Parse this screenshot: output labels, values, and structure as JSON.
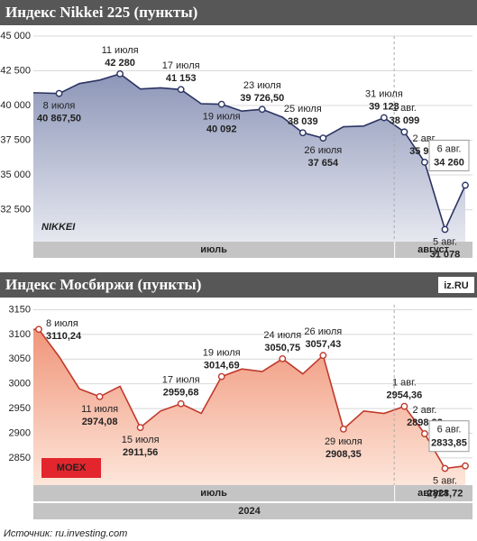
{
  "chart_data": [
    {
      "type": "area",
      "title": "Индекс Nikkei 225 (пункты)",
      "logo": "NIKKEI",
      "categories": [
        null,
        "8 июля",
        null,
        null,
        "11 июля",
        null,
        null,
        "17 июля",
        null,
        "19 июля",
        null,
        "23 июля",
        null,
        "25 июля",
        "26 июля",
        null,
        null,
        "31 июля",
        "1 авг.",
        "2 авг.",
        "5 авг.",
        "6 авг."
      ],
      "values": [
        40912,
        40867.5,
        41580,
        41831,
        42280,
        41190,
        41275,
        41153,
        40126,
        40092,
        39600,
        39726.5,
        39155,
        38039,
        37654,
        38470,
        38525,
        39123,
        38099,
        35917,
        31078,
        34260
      ],
      "value_labels": [
        null,
        "40 867,50",
        null,
        null,
        "42 280",
        null,
        null,
        "41 153",
        null,
        "40 092",
        null,
        "39 726,50",
        null,
        "38 039",
        "37 654",
        null,
        null,
        "39 123",
        "38 099",
        "35 917",
        "31 078",
        "34 260"
      ],
      "x_groups": [
        {
          "label": "июль",
          "count": 18
        },
        {
          "label": "август",
          "count": 4
        }
      ],
      "ylim": [
        30200,
        45000
      ],
      "yticks": [
        {
          "value": 32500,
          "label": "32 500"
        },
        {
          "value": 35000,
          "label": "35 000"
        },
        {
          "value": 37500,
          "label": "37 500"
        },
        {
          "value": 40000,
          "label": "40 000"
        },
        {
          "value": 42500,
          "label": "42 500"
        },
        {
          "value": 45000,
          "label": "45 000"
        }
      ],
      "grid": true,
      "color": "#2b3463",
      "fill": "#8d96b8"
    },
    {
      "type": "area",
      "title": "Индекс Мосбиржи (пункты)",
      "badge": "iz.RU",
      "logo": "MOEX",
      "categories": [
        "8 июля",
        null,
        null,
        "11 июля",
        null,
        "15 июля",
        null,
        "17 июля",
        null,
        "19 июля",
        null,
        null,
        "24 июля",
        null,
        "26 июля",
        "29 июля",
        null,
        null,
        "1 авг.",
        "2 авг.",
        "5 авг.",
        "6 авг."
      ],
      "values": [
        3110.24,
        3055,
        2990,
        2974.08,
        2995,
        2911.56,
        2945,
        2959.68,
        2940,
        3014.69,
        3030,
        3025,
        3050.75,
        3020,
        3057.43,
        2908.35,
        2945,
        2940,
        2954.36,
        2898.92,
        2828.72,
        2833.85
      ],
      "value_labels": [
        "3110,24",
        null,
        null,
        "2974,08",
        null,
        "2911,56",
        null,
        "2959,68",
        null,
        "3014,69",
        null,
        null,
        "3050,75",
        null,
        "3057,43",
        "2908,35",
        null,
        null,
        "2954,36",
        "2898,92",
        "2828,72",
        "2833,85"
      ],
      "x_groups": [
        {
          "label": "июль",
          "count": 18
        },
        {
          "label": "август",
          "count": 4
        }
      ],
      "year_label": "2024",
      "ylim": [
        2795,
        3160
      ],
      "yticks": [
        2850,
        2900,
        2950,
        3000,
        3050,
        3100,
        3150
      ],
      "grid": true,
      "color": "#c0392b",
      "fill": "#f0957a"
    }
  ],
  "source": "Источник: ru.investing.com"
}
